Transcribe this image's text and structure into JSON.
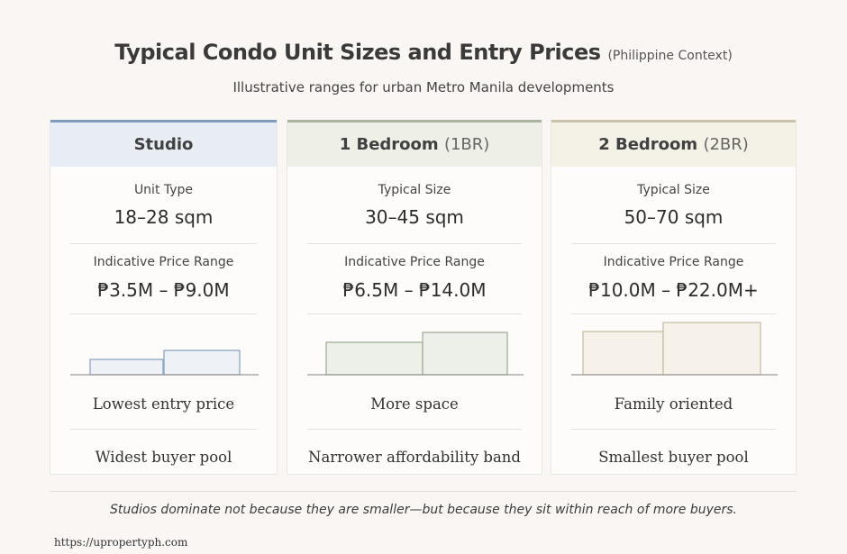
{
  "title": "Typical Condo Unit Sizes and Entry Prices",
  "title_note": "(Philippine Context)",
  "subtitle": "Illustrative ranges for urban Metro Manila developments",
  "cards": [
    {
      "name": "Studio",
      "size_label": "Unit Type",
      "size": "18–28 sqm",
      "price_label": "Indicative Price Range",
      "price": "₱3.5M – ₱9.0M",
      "point1": "Lowest entry price",
      "point2": "Widest buyer pool"
    },
    {
      "name": "1 Bedroom",
      "name_note": "(1BR)",
      "size_label": "Typical Size",
      "size": "30–45 sqm",
      "price_label": "Indicative Price Range",
      "price": "₱6.5M – ₱14.0M",
      "point1": "More space",
      "point2": "Narrower affordability band"
    },
    {
      "name": "2 Bedroom",
      "name_note": "(2BR)",
      "size_label": "Typical Size",
      "size": "50–70 sqm",
      "price_label": "Indicative Price Range",
      "price": "₱10.0M – ₱22.0M+",
      "point1": "Family oriented",
      "point2": "Smallest buyer pool"
    }
  ],
  "footnote": "Studios dominate not because they are smaller—but because they sit within reach of more buyers.",
  "source": "https://upropertyph.com"
}
